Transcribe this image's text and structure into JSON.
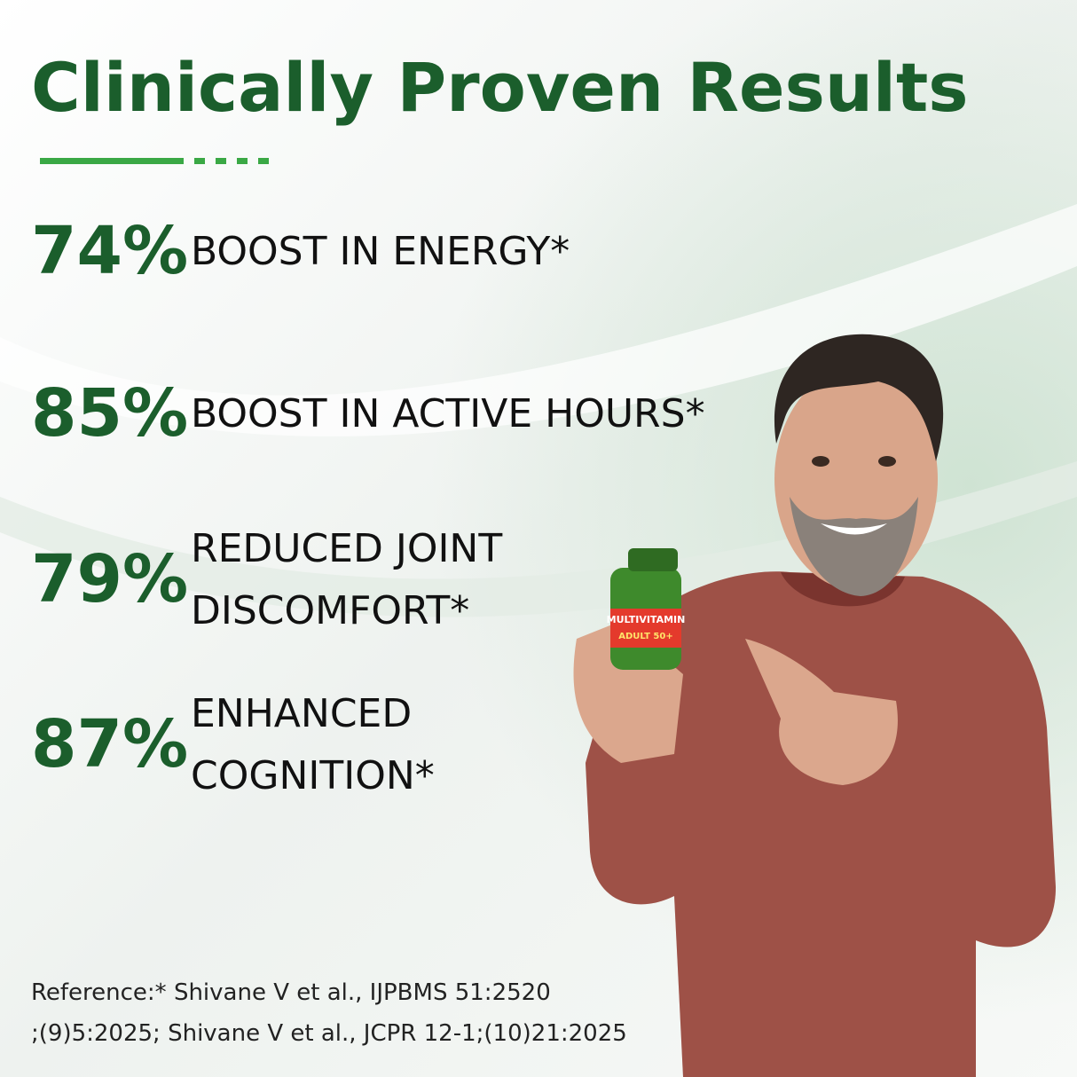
{
  "header": {
    "title": "Clinically Proven Results"
  },
  "stats": [
    {
      "value": "74%",
      "label_lines": [
        "BOOST IN ENERGY*"
      ]
    },
    {
      "value": "85%",
      "label_lines": [
        "BOOST IN ACTIVE HOURS*"
      ]
    },
    {
      "value": "79%",
      "label_lines": [
        "REDUCED JOINT",
        "DISCOMFORT*"
      ]
    },
    {
      "value": "87%",
      "label_lines": [
        "ENHANCED",
        "COGNITION*"
      ]
    }
  ],
  "product": {
    "name": "MULTIVITAMIN",
    "variant": "ADULT 50+"
  },
  "reference": {
    "lines": [
      "Reference:* Shivane V et al., IJPBMS 51:2520",
      ";(9)5:2025; Shivane V et al., JCPR 12-1;(10)21:2025"
    ]
  }
}
